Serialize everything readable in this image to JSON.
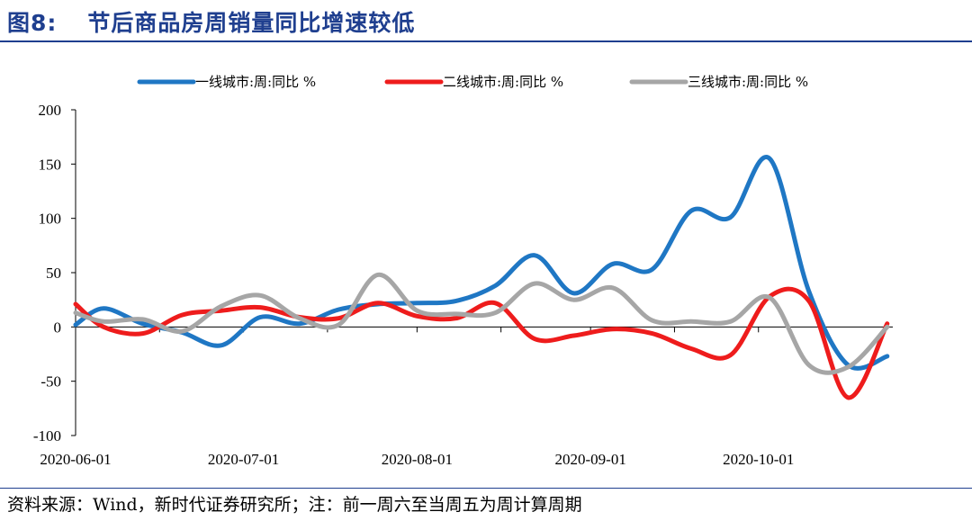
{
  "figure": {
    "number": "图8:",
    "title": "节后商品房周销量同比增速较低",
    "source": "资料来源：Wind，新时代证券研究所；注：前一周六至当周五为周计算周期"
  },
  "chart_data": {
    "type": "line",
    "ylim": [
      -100,
      200
    ],
    "yticks": [
      200,
      150,
      100,
      50,
      0,
      -50,
      -100
    ],
    "xlim": [
      "2020-06-01",
      "2020-10-25"
    ],
    "xtick_labels": [
      "2020-06-01",
      "2020-07-01",
      "2020-08-01",
      "2020-09-01",
      "2020-10-01"
    ],
    "grid": false,
    "legend_position": "top",
    "series": [
      {
        "name": "一线城市:周:同比 %",
        "color": "#1f77c4",
        "x": [
          "2020-06-01",
          "2020-06-06",
          "2020-06-13",
          "2020-06-20",
          "2020-06-27",
          "2020-07-04",
          "2020-07-11",
          "2020-07-18",
          "2020-07-25",
          "2020-08-01",
          "2020-08-08",
          "2020-08-15",
          "2020-08-22",
          "2020-08-29",
          "2020-09-05",
          "2020-09-12",
          "2020-09-19",
          "2020-09-26",
          "2020-10-03",
          "2020-10-10",
          "2020-10-17",
          "2020-10-24"
        ],
        "y": [
          2,
          17,
          3,
          -5,
          -17,
          9,
          3,
          16,
          21,
          22,
          24,
          38,
          66,
          31,
          58,
          53,
          107,
          101,
          155,
          33,
          -35,
          -27
        ]
      },
      {
        "name": "二线城市:周:同比 %",
        "color": "#ee1c1c",
        "x": [
          "2020-06-01",
          "2020-06-06",
          "2020-06-13",
          "2020-06-20",
          "2020-06-27",
          "2020-07-04",
          "2020-07-11",
          "2020-07-18",
          "2020-07-25",
          "2020-08-01",
          "2020-08-08",
          "2020-08-15",
          "2020-08-22",
          "2020-08-29",
          "2020-09-05",
          "2020-09-12",
          "2020-09-19",
          "2020-09-26",
          "2020-10-03",
          "2020-10-10",
          "2020-10-17",
          "2020-10-24"
        ],
        "y": [
          21,
          0,
          -6,
          11,
          15,
          18,
          9,
          8,
          22,
          10,
          8,
          22,
          -11,
          -8,
          -2,
          -6,
          -20,
          -26,
          28,
          24,
          -65,
          3
        ]
      },
      {
        "name": "三线城市:周:同比 %",
        "color": "#a6a6a6",
        "x": [
          "2020-06-01",
          "2020-06-06",
          "2020-06-13",
          "2020-06-20",
          "2020-06-27",
          "2020-07-04",
          "2020-07-11",
          "2020-07-18",
          "2020-07-25",
          "2020-08-01",
          "2020-08-08",
          "2020-08-15",
          "2020-08-22",
          "2020-08-29",
          "2020-09-05",
          "2020-09-12",
          "2020-09-19",
          "2020-09-26",
          "2020-10-03",
          "2020-10-10",
          "2020-10-17",
          "2020-10-24"
        ],
        "y": [
          13,
          5,
          7,
          -4,
          19,
          29,
          8,
          2,
          48,
          15,
          12,
          13,
          40,
          25,
          36,
          6,
          5,
          5,
          27,
          -35,
          -37,
          0
        ]
      }
    ]
  }
}
